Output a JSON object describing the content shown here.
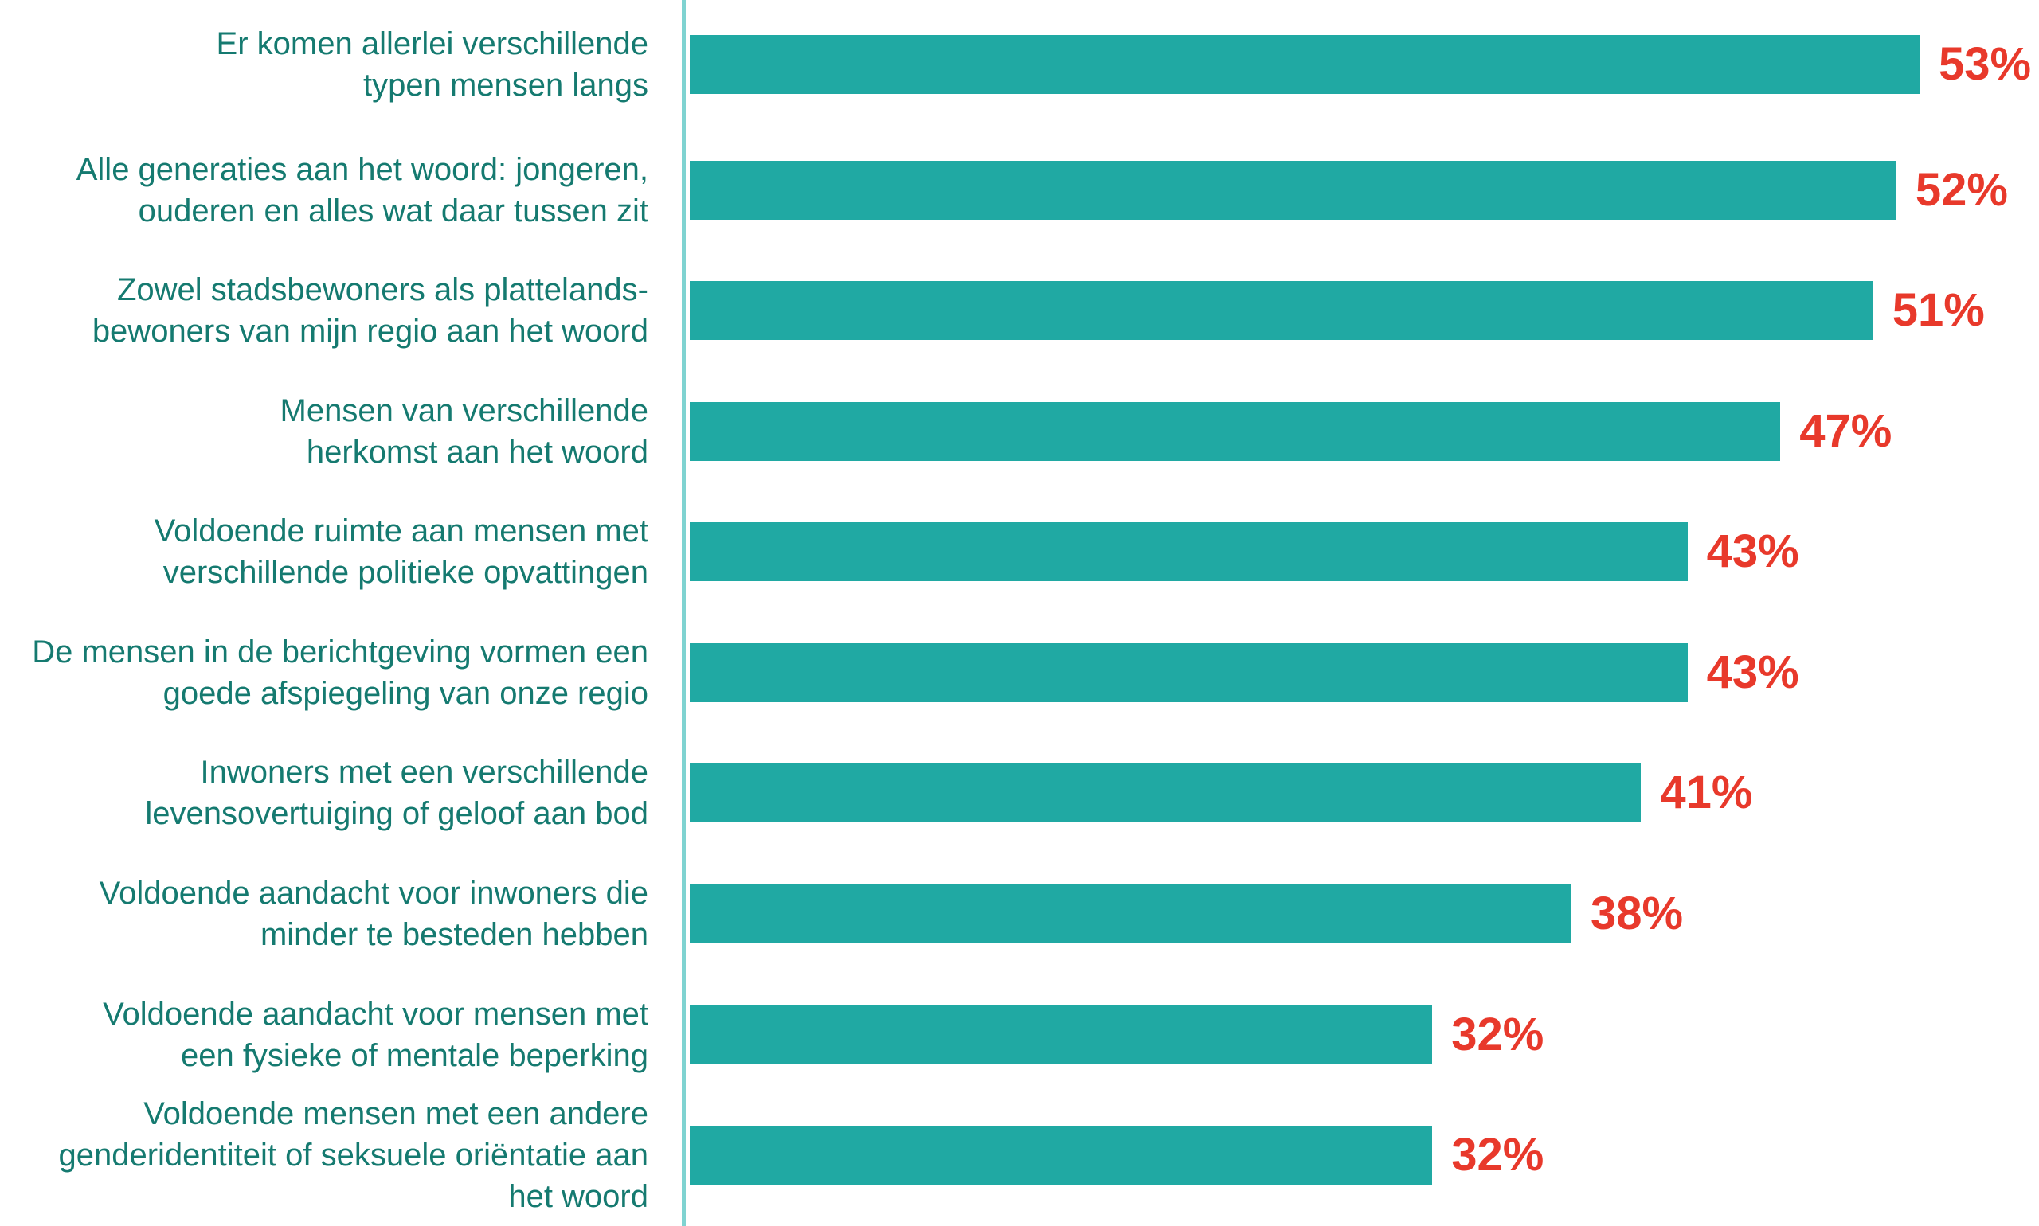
{
  "colors": {
    "bar": "#20a9a3",
    "value_label": "#e8392b",
    "category_label": "#157a70",
    "axis": "#7fd3d1"
  },
  "chart_data": {
    "type": "bar",
    "orientation": "horizontal",
    "title": "",
    "xlabel": "",
    "ylabel": "",
    "xlim": [
      0,
      53
    ],
    "grid": false,
    "legend": "none",
    "categories": [
      "Er komen allerlei verschillende typen mensen langs",
      "Alle generaties aan het woord: jongeren, ouderen en alles wat daar tussen zit",
      "Zowel stadsbewoners als plattelands-bewoners van mijn regio aan het woord",
      "Mensen van verschillende herkomst aan het woord",
      "Voldoende ruimte aan mensen met verschillende politieke opvattingen",
      "De mensen in de berichtgeving vormen een goede afspiegeling van onze regio",
      "Inwoners met een verschillende levensovertuiging of geloof aan bod",
      "Voldoende aandacht voor inwoners die minder te besteden hebben",
      "Voldoende aandacht voor mensen met een fysieke of mentale beperking",
      "Voldoende mensen met een andere genderidentiteit of seksuele oriëntatie aan het woord"
    ],
    "values": [
      53,
      52,
      51,
      47,
      43,
      43,
      41,
      38,
      32,
      32
    ],
    "value_labels": [
      "53%",
      "52%",
      "51%",
      "47%",
      "43%",
      "43%",
      "41%",
      "38%",
      "32%",
      "32%"
    ]
  }
}
